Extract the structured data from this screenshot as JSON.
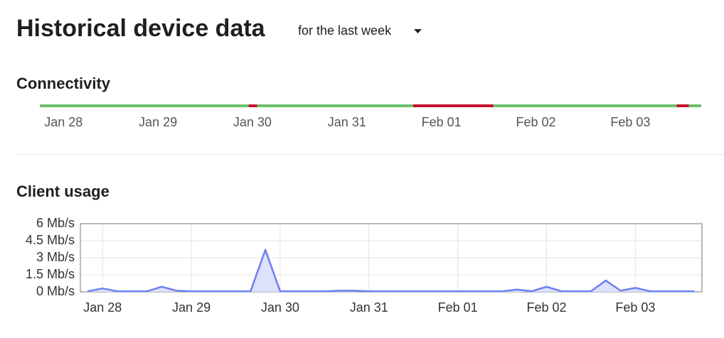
{
  "header": {
    "title": "Historical device data",
    "range": "for the last week"
  },
  "connectivity": {
    "title": "Connectivity",
    "xlim": [
      -0.25,
      6.75
    ],
    "xticks": [
      {
        "value": 0,
        "label": "Jan 28"
      },
      {
        "value": 1,
        "label": "Jan 29"
      },
      {
        "value": 2,
        "label": "Jan 30"
      },
      {
        "value": 3,
        "label": "Jan 31"
      },
      {
        "value": 4,
        "label": "Feb 01"
      },
      {
        "value": 5,
        "label": "Feb 02"
      },
      {
        "value": 6,
        "label": "Feb 03"
      }
    ],
    "segments": [
      {
        "start": -0.25,
        "end": 1.96,
        "color": "#6dbf6b"
      },
      {
        "start": 1.96,
        "end": 2.05,
        "color": "#c8102e"
      },
      {
        "start": 2.05,
        "end": 3.7,
        "color": "#6dbf6b"
      },
      {
        "start": 3.7,
        "end": 4.55,
        "color": "#c8102e"
      },
      {
        "start": 4.55,
        "end": 6.49,
        "color": "#6dbf6b"
      },
      {
        "start": 6.49,
        "end": 6.62,
        "color": "#c8102e"
      },
      {
        "start": 6.62,
        "end": 6.75,
        "color": "#6dbf6b"
      }
    ]
  },
  "client_usage": {
    "type": "area",
    "title": "Client usage",
    "color": "#6b7ff0",
    "fill": "#dde1fb",
    "grid": true,
    "categories": [
      null,
      "Jan 28",
      null,
      null,
      null,
      null,
      null,
      "Jan 29",
      null,
      null,
      null,
      null,
      null,
      "Jan 30",
      null,
      null,
      null,
      null,
      null,
      "Jan 31",
      null,
      null,
      null,
      null,
      null,
      "Feb 01",
      null,
      null,
      null,
      null,
      null,
      "Feb 02",
      null,
      null,
      null,
      null,
      null,
      "Feb 03",
      null,
      null,
      null,
      null
    ],
    "values": [
      0.05,
      0.3,
      0.05,
      0.05,
      0.05,
      0.45,
      0.1,
      0.05,
      0.05,
      0.05,
      0.05,
      0.05,
      3.7,
      0.05,
      0.05,
      0.05,
      0.05,
      0.1,
      0.1,
      0.05,
      0.05,
      0.05,
      0.05,
      0.05,
      0.05,
      0.05,
      0.05,
      0.05,
      0.05,
      0.2,
      0.05,
      0.45,
      0.05,
      0.05,
      0.05,
      1.0,
      0.1,
      0.35,
      0.05,
      0.05,
      0.05,
      0.05
    ],
    "ylim": [
      0,
      6
    ],
    "yticks": [
      {
        "value": 0,
        "label": "0 Mb/s"
      },
      {
        "value": 1.5,
        "label": "1.5 Mb/s"
      },
      {
        "value": 3,
        "label": "3 Mb/s"
      },
      {
        "value": 4.5,
        "label": "4.5 Mb/s"
      },
      {
        "value": 6,
        "label": "6 Mb/s"
      }
    ]
  }
}
